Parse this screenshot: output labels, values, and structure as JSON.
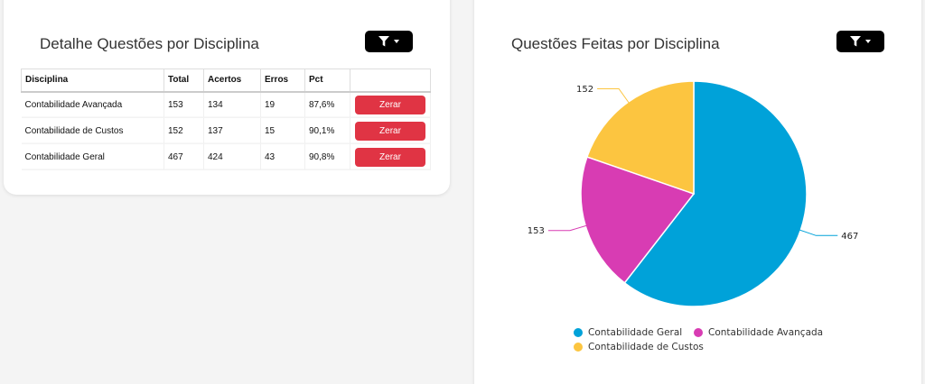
{
  "left_panel": {
    "title": "Detalhe Questões por Disciplina",
    "filter_icon": "filter-icon",
    "columns": [
      "Disciplina",
      "Total",
      "Acertos",
      "Erros",
      "Pct",
      ""
    ],
    "rows": [
      {
        "disciplina": "Contabilidade Avançada",
        "total": "153",
        "acertos": "134",
        "erros": "19",
        "pct": "87,6%",
        "action": "Zerar"
      },
      {
        "disciplina": "Contabilidade de Custos",
        "total": "152",
        "acertos": "137",
        "erros": "15",
        "pct": "90,1%",
        "action": "Zerar"
      },
      {
        "disciplina": "Contabilidade Geral",
        "total": "467",
        "acertos": "424",
        "erros": "43",
        "pct": "90,8%",
        "action": "Zerar"
      }
    ]
  },
  "right_panel": {
    "title": "Questões Feitas por Disciplina",
    "filter_icon": "filter-icon"
  },
  "chart_data": {
    "type": "pie",
    "title": "Questões Feitas por Disciplina",
    "slices": [
      {
        "label": "Contabilidade Geral",
        "value": 467,
        "color": "#00a2d9"
      },
      {
        "label": "Contabilidade Avançada",
        "value": 153,
        "color": "#d83cb3"
      },
      {
        "label": "Contabilidade de Custos",
        "value": 152,
        "color": "#fcc540"
      }
    ],
    "legend_position": "bottom"
  }
}
